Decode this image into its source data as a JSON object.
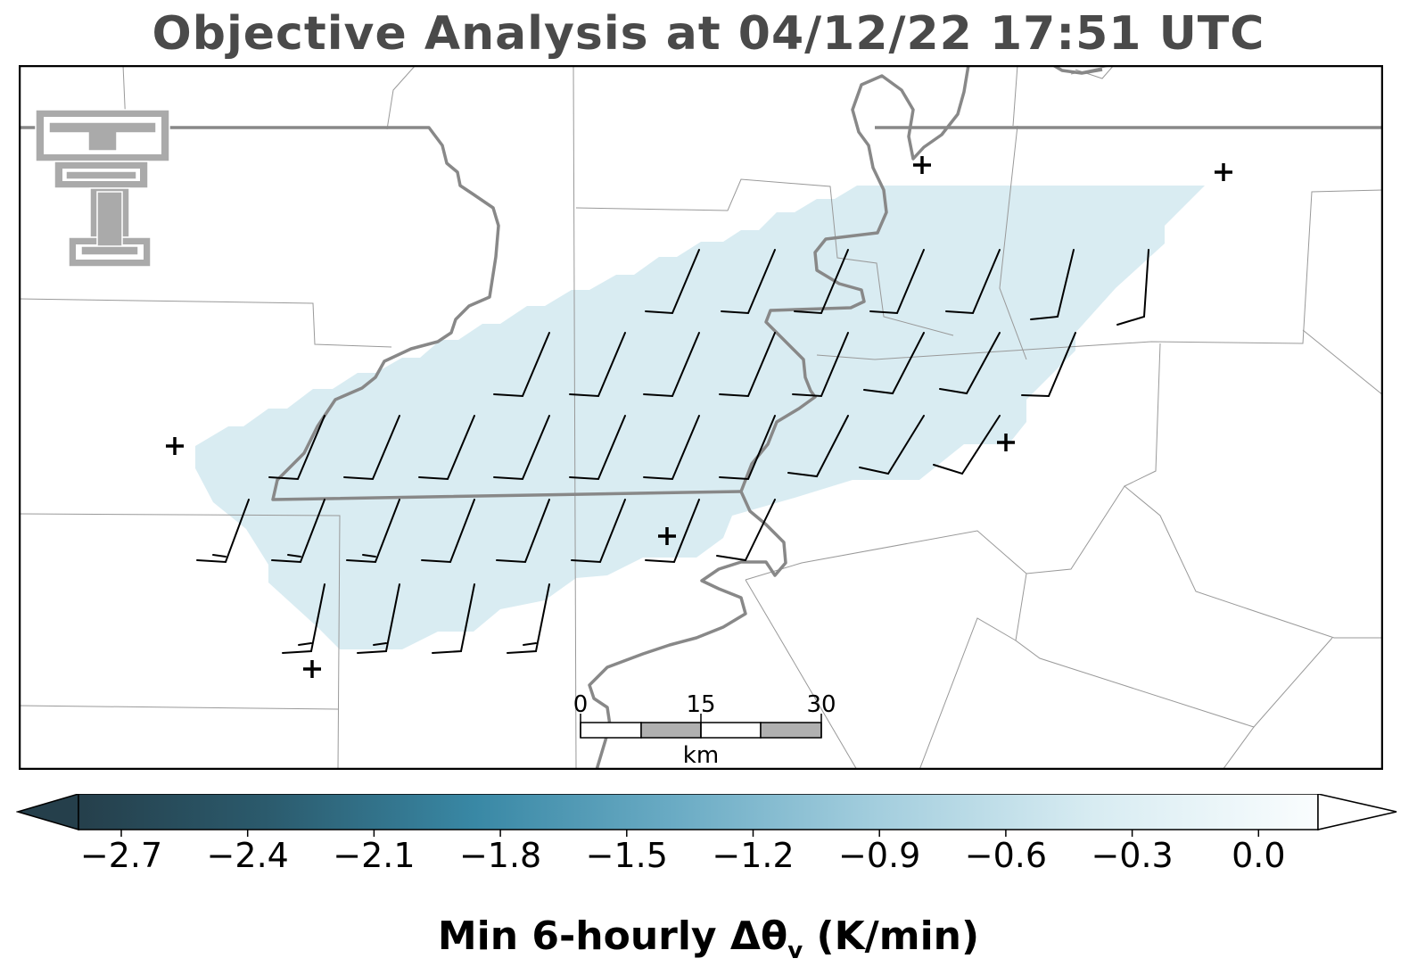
{
  "title": "Objective Analysis at 04/12/22 17:51 UTC",
  "colorbar": {
    "label_main": "Min 6-hourly Δθ",
    "label_sub": "v",
    "label_unit": " (K/min)",
    "ticks": [
      "−2.7",
      "−2.4",
      "−2.1",
      "−1.8",
      "−1.5",
      "−1.2",
      "−0.9",
      "−0.6",
      "−0.3",
      "0.0"
    ],
    "colors": [
      "#253f4b",
      "#2a5566",
      "#2f6c82",
      "#3a8aa6",
      "#5a9fba",
      "#84bacd",
      "#a9d0de",
      "#c8e2eb",
      "#e3f1f5",
      "#f7fbfc"
    ]
  },
  "scalebar": {
    "labels": [
      "0",
      "15",
      "30"
    ],
    "unit": "km"
  },
  "colors": {
    "fill": "#d9ecf2",
    "river": "#888888",
    "boundary": "#999999"
  },
  "logo": "texas-tech-double-t-logo"
}
